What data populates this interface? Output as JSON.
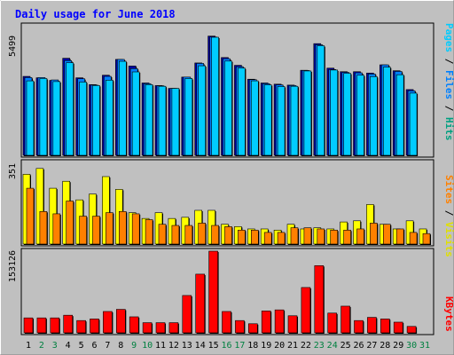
{
  "title": "Daily usage for June 2018",
  "colors": {
    "background": "#c0c0c0",
    "title": "#0000ff",
    "hits": "#00ccff",
    "files": "#0080ff",
    "pages": "#0000a0",
    "visits": "#ffff00",
    "sites": "#ff8000",
    "kbytes": "#ff0000",
    "weekend_day": "#008040"
  },
  "chart_data": [
    {
      "type": "bar",
      "panel": "hits-files-pages",
      "title": "Daily usage for June 2018",
      "categories": [
        "1",
        "2",
        "3",
        "4",
        "5",
        "6",
        "7",
        "8",
        "9",
        "10",
        "11",
        "12",
        "13",
        "14",
        "15",
        "16",
        "17",
        "18",
        "19",
        "20",
        "21",
        "22",
        "23",
        "24",
        "25",
        "26",
        "27",
        "28",
        "29",
        "30",
        "31"
      ],
      "weekend_days": [
        "2",
        "3",
        "9",
        "10",
        "16",
        "17",
        "23",
        "24",
        "30",
        "31"
      ],
      "y_tick_label": "5499",
      "ylim": [
        0,
        5499
      ],
      "right_labels": [
        "Pages",
        "Files",
        "Hits"
      ],
      "series": [
        {
          "name": "Pages",
          "values": [
            3350,
            3290,
            3180,
            4120,
            3290,
            3000,
            3400,
            4070,
            3790,
            3070,
            2960,
            2840,
            3320,
            3920,
            5060,
            4150,
            3820,
            3230,
            3070,
            3020,
            2980,
            3610,
            4740,
            3700,
            3550,
            3550,
            3490,
            3840,
            3590,
            2790,
            0
          ]
        },
        {
          "name": "Files",
          "values": [
            3300,
            3300,
            3200,
            4020,
            3250,
            2980,
            3350,
            4070,
            3680,
            3040,
            2950,
            2840,
            3320,
            3900,
            5020,
            4100,
            3760,
            3210,
            3040,
            2990,
            2960,
            3600,
            4690,
            3640,
            3520,
            3500,
            3450,
            3840,
            3560,
            2740,
            0
          ]
        },
        {
          "name": "Hits",
          "values": [
            3160,
            3260,
            3130,
            3930,
            3110,
            2960,
            3190,
            3990,
            3540,
            3000,
            2930,
            2840,
            3260,
            3800,
            5010,
            4000,
            3700,
            3160,
            2990,
            2920,
            2930,
            3580,
            4650,
            3620,
            3480,
            3400,
            3340,
            3740,
            3420,
            2640,
            0
          ]
        }
      ]
    },
    {
      "type": "bar",
      "panel": "visits-sites",
      "y_tick_label": "351",
      "ylim": [
        0,
        351
      ],
      "right_labels": [
        "Sites",
        "Visits"
      ],
      "series": [
        {
          "name": "Visits",
          "values": [
            300,
            325,
            240,
            270,
            190,
            215,
            290,
            235,
            135,
            110,
            135,
            110,
            115,
            145,
            145,
            85,
            75,
            65,
            65,
            60,
            85,
            65,
            70,
            65,
            95,
            100,
            170,
            85,
            65,
            100,
            65
          ]
        },
        {
          "name": "Sites",
          "values": [
            240,
            140,
            130,
            185,
            120,
            120,
            135,
            140,
            130,
            105,
            85,
            80,
            80,
            90,
            80,
            75,
            60,
            60,
            50,
            50,
            70,
            70,
            65,
            60,
            60,
            65,
            90,
            85,
            65,
            50,
            45
          ]
        }
      ]
    },
    {
      "type": "bar",
      "panel": "kbytes",
      "y_tick_label": "153126",
      "ylim": [
        0,
        153126
      ],
      "right_labels": [
        "KBytes"
      ],
      "series": [
        {
          "name": "KBytes",
          "values": [
            28000,
            28000,
            28000,
            33000,
            23000,
            26000,
            40000,
            44000,
            30000,
            19000,
            19000,
            19000,
            70000,
            110000,
            153126,
            40000,
            23000,
            17000,
            41000,
            43000,
            32000,
            85000,
            126000,
            37000,
            50000,
            23000,
            29000,
            26000,
            20000,
            12000,
            0
          ]
        }
      ]
    }
  ]
}
